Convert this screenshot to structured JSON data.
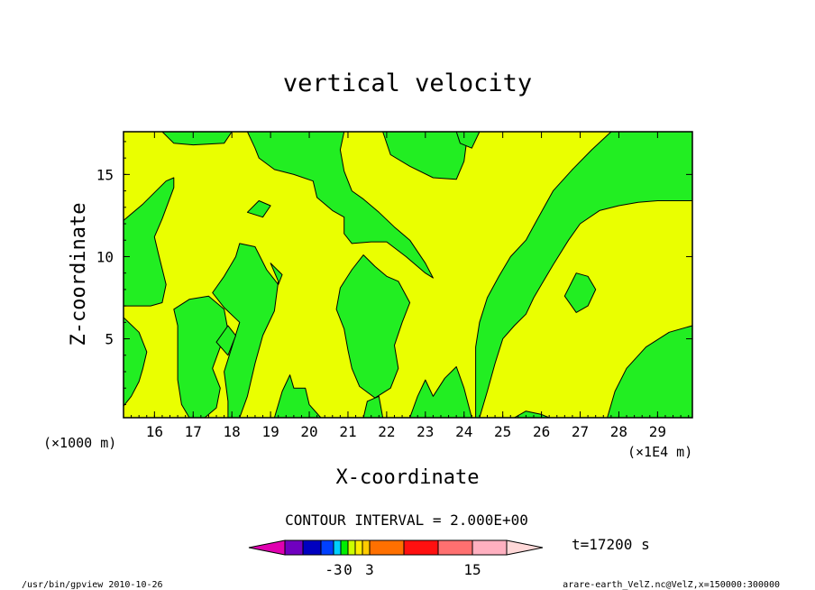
{
  "chart_data": {
    "type": "contour",
    "title": "vertical velocity",
    "xlabel": "X-coordinate",
    "ylabel": "Z-coordinate",
    "x_unit_left": "(×1000 m)",
    "x_unit_right": "(×1E4 m)",
    "xlim": [
      15.2,
      29.9
    ],
    "ylim": [
      0.2,
      17.6
    ],
    "x_ticks": [
      16,
      17,
      18,
      19,
      20,
      21,
      22,
      23,
      24,
      25,
      26,
      27,
      28,
      29
    ],
    "y_ticks": [
      5,
      10,
      15
    ],
    "contour_interval_label": "CONTOUR INTERVAL = 2.000E+00",
    "time_label": "t=17200 s",
    "footer_left": "/usr/bin/gpview  2010-10-26",
    "footer_right": "arare-earth_VelZ.nc@VelZ,x=150000:300000",
    "colors": {
      "positive_fill": "#eaff00",
      "negative_fill": "#22ee22",
      "outline": "#000000"
    },
    "colorbar": {
      "colors": [
        "#e000b0",
        "#7000c0",
        "#0000c0",
        "#0040ff",
        "#00d0ff",
        "#00ee00",
        "#ccff00",
        "#ffee00",
        "#ffcc00",
        "#ff7000",
        "#ff1010",
        "#ff7070",
        "#ffb0c0",
        "#ffd8d8"
      ],
      "labels": [
        "-3",
        "0",
        "3",
        "15"
      ]
    },
    "green_regions": [
      [
        [
          15.2,
          12.2
        ],
        [
          15.7,
          13.2
        ],
        [
          16.3,
          14.6
        ],
        [
          16.5,
          14.8
        ],
        [
          16.5,
          14.2
        ],
        [
          16.2,
          12.3
        ],
        [
          16.0,
          11.2
        ],
        [
          16.1,
          10.2
        ],
        [
          16.3,
          8.3
        ],
        [
          16.2,
          7.2
        ],
        [
          15.9,
          7.0
        ],
        [
          15.6,
          7.0
        ],
        [
          15.2,
          7.0
        ]
      ],
      [
        [
          15.2,
          6.3
        ],
        [
          15.6,
          5.4
        ],
        [
          15.8,
          4.2
        ],
        [
          15.7,
          3.2
        ],
        [
          15.6,
          2.4
        ],
        [
          15.4,
          1.5
        ],
        [
          15.2,
          0.9
        ]
      ],
      [
        [
          16.5,
          6.8
        ],
        [
          16.6,
          5.8
        ],
        [
          16.6,
          4.2
        ],
        [
          16.6,
          2.5
        ],
        [
          16.7,
          1.0
        ],
        [
          16.9,
          0.2
        ],
        [
          17.3,
          0.2
        ],
        [
          17.6,
          0.8
        ],
        [
          17.7,
          2.0
        ],
        [
          17.5,
          3.2
        ],
        [
          17.7,
          4.5
        ],
        [
          17.9,
          5.5
        ],
        [
          17.8,
          6.8
        ],
        [
          17.4,
          7.6
        ],
        [
          16.9,
          7.4
        ]
      ],
      [
        [
          17.5,
          7.8
        ],
        [
          17.8,
          8.8
        ],
        [
          18.1,
          10.0
        ],
        [
          18.2,
          10.8
        ],
        [
          18.6,
          10.6
        ],
        [
          18.9,
          9.2
        ],
        [
          19.2,
          8.3
        ],
        [
          19.3,
          8.9
        ],
        [
          19.0,
          9.6
        ],
        [
          19.2,
          8.5
        ],
        [
          19.1,
          6.7
        ],
        [
          18.8,
          5.2
        ],
        [
          18.6,
          3.5
        ],
        [
          18.4,
          1.5
        ],
        [
          18.2,
          0.2
        ],
        [
          17.9,
          0.2
        ],
        [
          17.9,
          1.2
        ],
        [
          17.8,
          3.0
        ],
        [
          18.0,
          4.5
        ],
        [
          18.2,
          6.0
        ],
        [
          17.8,
          6.9
        ]
      ],
      [
        [
          17.6,
          4.8
        ],
        [
          17.9,
          4.0
        ],
        [
          18.1,
          5.2
        ],
        [
          17.9,
          5.8
        ]
      ],
      [
        [
          19.1,
          0.2
        ],
        [
          19.3,
          1.8
        ],
        [
          19.5,
          2.8
        ],
        [
          19.6,
          2.0
        ],
        [
          19.9,
          2.0
        ],
        [
          20.0,
          1.0
        ],
        [
          20.3,
          0.2
        ]
      ],
      [
        [
          20.8,
          8.1
        ],
        [
          21.1,
          9.2
        ],
        [
          21.4,
          10.1
        ],
        [
          21.7,
          9.4
        ],
        [
          22.0,
          8.8
        ],
        [
          22.3,
          8.5
        ],
        [
          22.6,
          7.2
        ],
        [
          22.4,
          6.0
        ],
        [
          22.2,
          4.6
        ],
        [
          22.3,
          3.2
        ],
        [
          22.1,
          2.0
        ],
        [
          21.7,
          1.4
        ],
        [
          21.3,
          2.1
        ],
        [
          21.1,
          3.2
        ],
        [
          21.0,
          4.3
        ],
        [
          20.9,
          5.6
        ],
        [
          20.7,
          6.8
        ]
      ],
      [
        [
          21.4,
          0.2
        ],
        [
          21.5,
          1.2
        ],
        [
          21.8,
          1.5
        ],
        [
          21.9,
          0.2
        ]
      ],
      [
        [
          22.6,
          0.2
        ],
        [
          22.8,
          1.5
        ],
        [
          23.0,
          2.5
        ],
        [
          23.2,
          1.5
        ],
        [
          23.5,
          2.6
        ],
        [
          23.8,
          3.3
        ],
        [
          24.0,
          2.0
        ],
        [
          24.2,
          0.2
        ]
      ],
      [
        [
          24.4,
          0.2
        ],
        [
          24.6,
          1.8
        ],
        [
          24.8,
          3.5
        ],
        [
          25.0,
          5.0
        ],
        [
          25.3,
          5.8
        ],
        [
          25.6,
          6.5
        ],
        [
          25.8,
          7.5
        ],
        [
          26.0,
          8.3
        ],
        [
          26.3,
          9.5
        ],
        [
          26.7,
          11.0
        ],
        [
          27.0,
          12.0
        ],
        [
          27.5,
          12.8
        ],
        [
          28.0,
          13.1
        ],
        [
          28.5,
          13.3
        ],
        [
          29.0,
          13.4
        ],
        [
          29.9,
          13.4
        ],
        [
          29.9,
          17.6
        ],
        [
          27.8,
          17.6
        ],
        [
          27.3,
          16.5
        ],
        [
          26.8,
          15.3
        ],
        [
          26.3,
          14.0
        ],
        [
          25.9,
          12.3
        ],
        [
          25.6,
          11.0
        ],
        [
          25.2,
          10.0
        ],
        [
          24.9,
          8.8
        ],
        [
          24.6,
          7.5
        ],
        [
          24.4,
          6.0
        ],
        [
          24.3,
          4.5
        ],
        [
          24.3,
          2.5
        ],
        [
          24.3,
          0.2
        ]
      ],
      [
        [
          26.6,
          7.6
        ],
        [
          26.9,
          9.0
        ],
        [
          27.2,
          8.8
        ],
        [
          27.4,
          8.0
        ],
        [
          27.2,
          7.0
        ],
        [
          26.9,
          6.6
        ]
      ],
      [
        [
          27.7,
          0.2
        ],
        [
          27.9,
          1.8
        ],
        [
          28.2,
          3.2
        ],
        [
          28.7,
          4.5
        ],
        [
          29.3,
          5.4
        ],
        [
          29.9,
          5.8
        ],
        [
          29.9,
          0.2
        ]
      ],
      [
        [
          25.3,
          0.2
        ],
        [
          25.6,
          0.6
        ],
        [
          26.0,
          0.4
        ],
        [
          26.2,
          0.2
        ]
      ],
      [
        [
          21.9,
          17.6
        ],
        [
          22.1,
          16.2
        ],
        [
          22.6,
          15.5
        ],
        [
          23.2,
          14.8
        ],
        [
          23.8,
          14.7
        ],
        [
          24.0,
          15.8
        ],
        [
          24.1,
          17.6
        ]
      ],
      [
        [
          23.8,
          17.6
        ],
        [
          23.9,
          16.9
        ],
        [
          24.2,
          16.6
        ],
        [
          24.4,
          17.6
        ]
      ],
      [
        [
          18.4,
          17.6
        ],
        [
          18.6,
          16.6
        ],
        [
          18.7,
          16.0
        ],
        [
          19.1,
          15.3
        ],
        [
          19.6,
          15.0
        ],
        [
          20.1,
          14.6
        ],
        [
          20.2,
          13.6
        ],
        [
          20.6,
          12.8
        ],
        [
          20.9,
          12.4
        ],
        [
          20.9,
          11.4
        ],
        [
          21.1,
          10.8
        ],
        [
          21.6,
          10.9
        ],
        [
          22.0,
          10.9
        ],
        [
          22.5,
          10.0
        ],
        [
          23.0,
          9.0
        ],
        [
          23.2,
          8.7
        ],
        [
          23.0,
          9.6
        ],
        [
          22.6,
          11.0
        ],
        [
          22.2,
          11.8
        ],
        [
          21.8,
          12.7
        ],
        [
          21.4,
          13.5
        ],
        [
          21.1,
          14.0
        ],
        [
          20.9,
          15.2
        ],
        [
          20.8,
          16.5
        ],
        [
          20.9,
          17.6
        ]
      ],
      [
        [
          16.2,
          17.6
        ],
        [
          16.5,
          16.9
        ],
        [
          17.0,
          16.8
        ],
        [
          17.8,
          16.9
        ],
        [
          18.0,
          17.6
        ]
      ],
      [
        [
          18.4,
          12.7
        ],
        [
          18.7,
          13.4
        ],
        [
          19.0,
          13.1
        ],
        [
          18.8,
          12.4
        ]
      ]
    ]
  }
}
